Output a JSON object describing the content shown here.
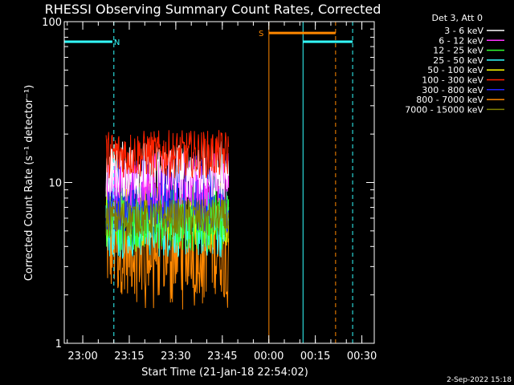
{
  "chart_data": {
    "type": "line",
    "title": "RHESSI Observing Summary Count Rates, Corrected",
    "xlabel": "Start Time (21-Jan-18 22:54:02)",
    "ylabel": "Corrected Count Rate (s⁻¹ detector⁻¹)",
    "y_scale": "log",
    "ylim": [
      1,
      100
    ],
    "xlim": [
      "22:54:02",
      "00:34:00"
    ],
    "x_tick_labels": [
      "23:00",
      "23:15",
      "23:30",
      "23:45",
      "00:00",
      "00:15",
      "00:30"
    ],
    "x_tick_minutes": [
      5.97,
      20.97,
      35.97,
      50.97,
      65.97,
      80.97,
      95.97
    ],
    "y_tick_labels": [
      "1",
      "10",
      "100"
    ],
    "y_tick_values": [
      1,
      10,
      100
    ],
    "grid": false,
    "legend_position": "right",
    "legend_header": "Det 3, Att 0",
    "data_window_minutes": [
      13.5,
      53.0
    ],
    "series": [
      {
        "name": "3 - 6 keV",
        "color": "#ffffff",
        "level": 12.0,
        "spread": 0.06
      },
      {
        "name": "6 - 12 keV",
        "color": "#ff33ff",
        "level": 10.5,
        "spread": 0.06
      },
      {
        "name": "12 - 25 keV",
        "color": "#33ff33",
        "level": 6.0,
        "spread": 0.07
      },
      {
        "name": "25 - 50 keV",
        "color": "#33ffff",
        "level": 5.5,
        "spread": 0.07
      },
      {
        "name": "50 - 100 keV",
        "color": "#ffff00",
        "level": 6.5,
        "spread": 0.07
      },
      {
        "name": "100 - 300 keV",
        "color": "#ff2200",
        "level": 15.0,
        "spread": 0.05
      },
      {
        "name": "300 - 800 keV",
        "color": "#2222ff",
        "level": 8.5,
        "spread": 0.08
      },
      {
        "name": "800 - 7000 keV",
        "color": "#ff8800",
        "level": 4.0,
        "spread": 0.1
      },
      {
        "name": "7000 - 15000 keV",
        "color": "#808000",
        "level": 6.0,
        "spread": 0.04
      }
    ],
    "flag_bars": [
      {
        "label": "N",
        "color": "#33ffff",
        "y": 75,
        "start_min": 0.0,
        "end_min": 15.5,
        "label_min": 17.0
      },
      {
        "label": "S",
        "color": "#ff8800",
        "y": 85,
        "start_min": 66.0,
        "end_min": 87.5,
        "label_min": 63.5
      },
      {
        "label": "",
        "color": "#33ffff",
        "y": 75,
        "start_min": 77.0,
        "end_min": 93.0,
        "label_min": 0
      }
    ],
    "vertical_markers": [
      {
        "min": 0.0,
        "color": "#33ffff",
        "style": "solid"
      },
      {
        "min": 16.0,
        "color": "#33ffff",
        "style": "dashed"
      },
      {
        "min": 66.0,
        "color": "#ff8800",
        "style": "solid"
      },
      {
        "min": 77.0,
        "color": "#33ffff",
        "style": "solid"
      },
      {
        "min": 87.5,
        "color": "#ff8800",
        "style": "dashed"
      },
      {
        "min": 93.0,
        "color": "#33ffff",
        "style": "dashed"
      }
    ]
  },
  "datestamp": "2-Sep-2022 15:18"
}
